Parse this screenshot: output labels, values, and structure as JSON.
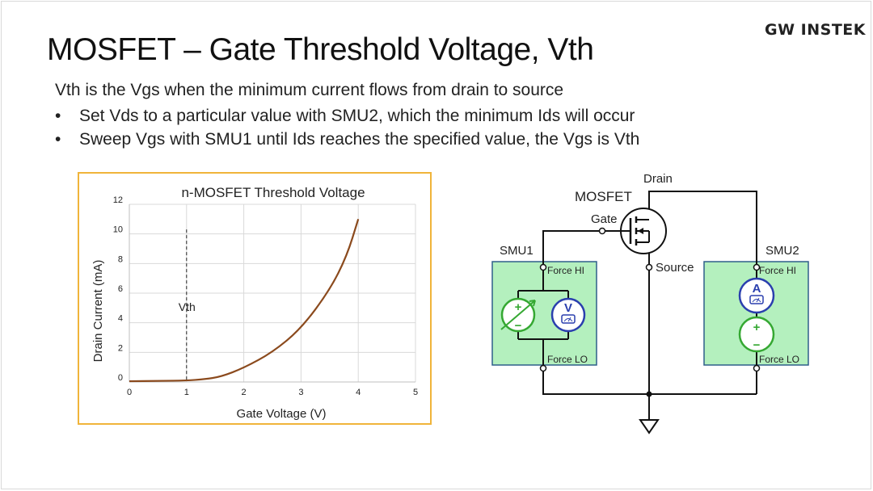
{
  "slide": {
    "title": "MOSFET – Gate Threshold Voltage, Vth",
    "logo": "GW INSTEK",
    "lead": "Vth is the Vgs when the minimum current flows from drain to source",
    "bullet_marker": "•",
    "bullets": [
      "Set Vds to a particular value with SMU2, which the minimum Ids will occur",
      "Sweep Vgs with SMU1 until Ids reaches the specified value, the Vgs is Vth"
    ]
  },
  "chart_data": {
    "type": "line",
    "title": "n-MOSFET Threshold Voltage",
    "xlabel": "Gate Voltage (V)",
    "ylabel": "Drain Current (mA)",
    "xlim": [
      0,
      5
    ],
    "ylim": [
      0,
      12
    ],
    "xticks": [
      "0",
      "1",
      "2",
      "3",
      "4",
      "5"
    ],
    "yticks": [
      "0",
      "2",
      "4",
      "6",
      "8",
      "10",
      "12"
    ],
    "grid": true,
    "series": [
      {
        "color": "#8b4a1d",
        "x": [
          0,
          0.5,
          1.0,
          1.3,
          1.6,
          2.0,
          2.5,
          3.0,
          3.5,
          3.8,
          4.0
        ],
        "y": [
          0.05,
          0.07,
          0.1,
          0.18,
          0.35,
          0.95,
          2.0,
          3.6,
          6.2,
          8.5,
          11.0
        ]
      }
    ],
    "annotation": {
      "label": "Vth",
      "x": 1.0
    }
  },
  "circuit": {
    "drain": "Drain",
    "mosfet": "MOSFET",
    "gate": "Gate",
    "source": "Source",
    "smu1": "SMU1",
    "smu2": "SMU2",
    "force_hi": "Force HI",
    "force_lo": "Force LO",
    "voltmeter": "V",
    "ammeter": "A",
    "plus": "+",
    "minus": "−",
    "smu_fill": "#b4f0be",
    "meter_color": "#2a3fae",
    "source_color": "#35a832"
  }
}
